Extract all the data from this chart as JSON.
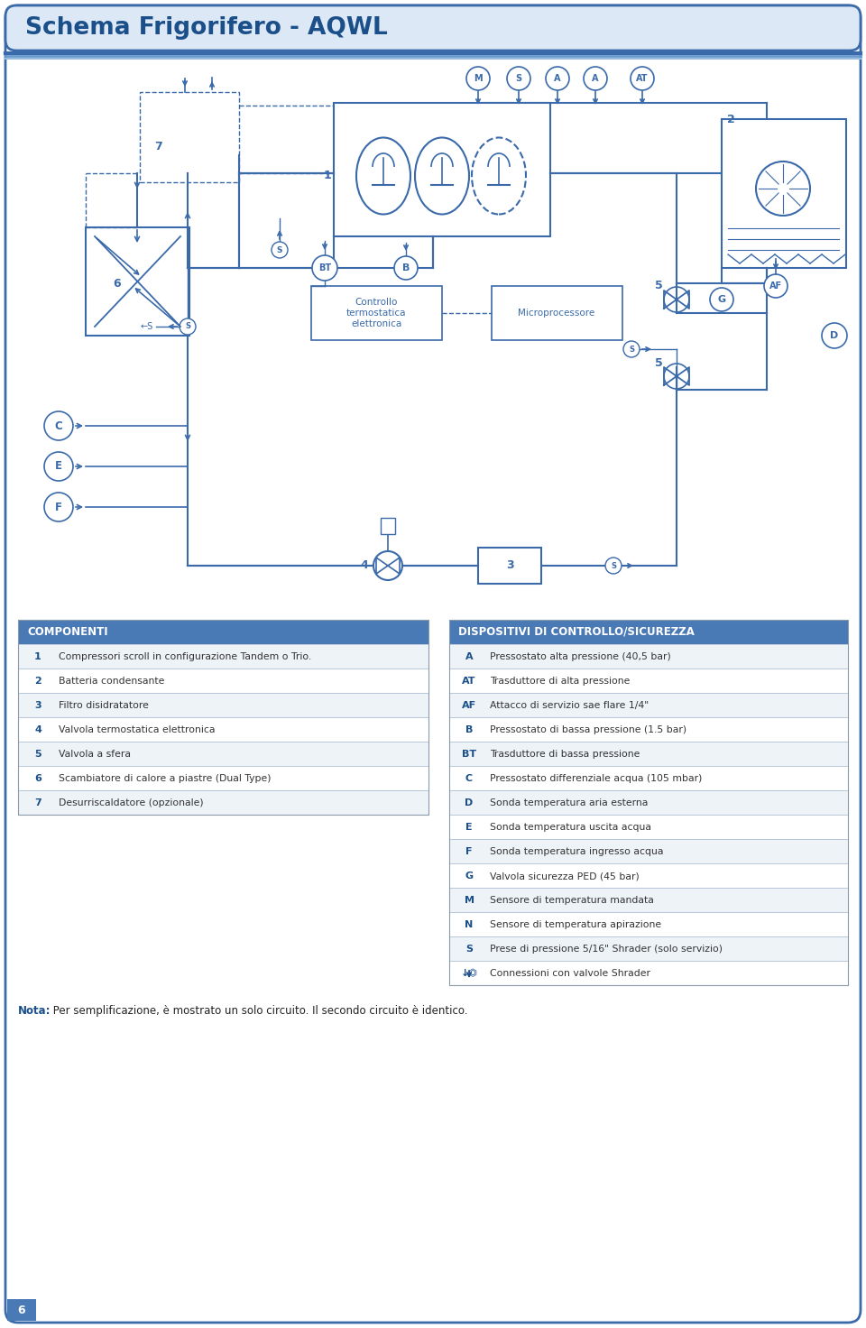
{
  "title": "Schema Frigorifero - AQWL",
  "title_color": "#1b4f8a",
  "header_bg": "#dce8f5",
  "border_color": "#3a6aaa",
  "table_header_bg": "#4a7ab5",
  "table_header_color": "#ffffff",
  "comp_header": "COMPONENTI",
  "ctrl_header": "DISPOSITIVI DI CONTROLLO/SICUREZZA",
  "components": [
    [
      "1",
      "Compressori scroll in configurazione Tandem o Trio."
    ],
    [
      "2",
      "Batteria condensante"
    ],
    [
      "3",
      "Filtro disidratatore"
    ],
    [
      "4",
      "Valvola termostatica elettronica"
    ],
    [
      "5",
      "Valvola a sfera"
    ],
    [
      "6",
      "Scambiatore di calore a piastre (Dual Type)"
    ],
    [
      "7",
      "Desurriscaldatore (opzionale)"
    ]
  ],
  "controls": [
    [
      "A",
      "Pressostato alta pressione (40,5 bar)"
    ],
    [
      "AT",
      "Trasduttore di alta pressione"
    ],
    [
      "AF",
      "Attacco di servizio sae flare 1/4\""
    ],
    [
      "B",
      "Pressostato di bassa pressione (1.5 bar)"
    ],
    [
      "BT",
      "Trasduttore di bassa pressione"
    ],
    [
      "C",
      "Pressostato differenziale acqua (105 mbar)"
    ],
    [
      "D",
      "Sonda temperatura aria esterna"
    ],
    [
      "E",
      "Sonda temperatura uscita acqua"
    ],
    [
      "F",
      "Sonda temperatura ingresso acqua"
    ],
    [
      "G",
      "Valvola sicurezza PED (45 bar)"
    ],
    [
      "M",
      "Sensore di temperatura mandata"
    ],
    [
      "N",
      "Sensore di temperatura apirazione"
    ],
    [
      "S",
      "Prese di pressione 5/16\" Shrader (solo servizio)"
    ],
    [
      "↓⏣",
      "Connessioni con valvole Shrader"
    ]
  ],
  "note_bold": "Nota:",
  "note_text": " Per semplificazione, è mostrato un solo circuito. Il secondo circuito è identico.",
  "diagram_color": "#3a6aaa",
  "page_num": "6"
}
